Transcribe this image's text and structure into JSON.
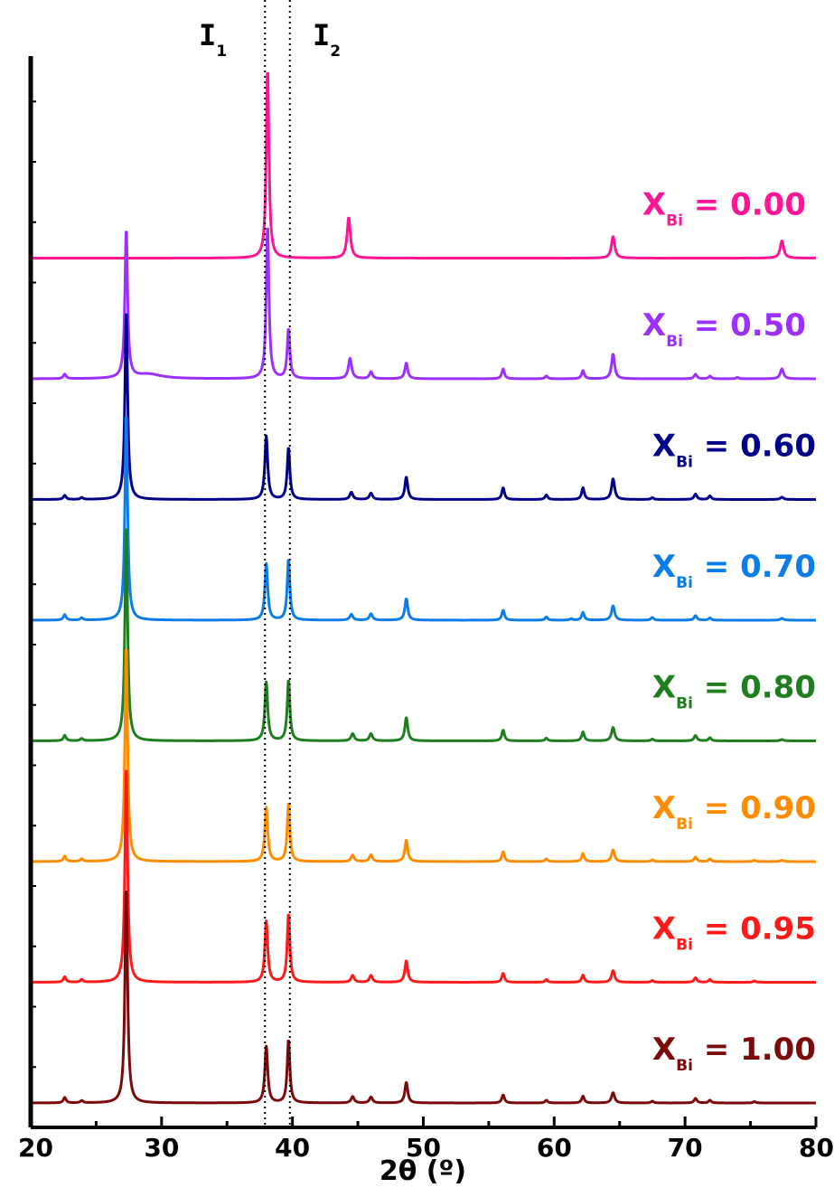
{
  "chart_data": {
    "type": "line",
    "xlabel": "2θ (º)",
    "ylabel": "",
    "xlim": [
      20,
      80
    ],
    "xticks": [
      20,
      30,
      40,
      50,
      60,
      70,
      80
    ],
    "yticks_labeled": false,
    "grid": false,
    "legend": "none",
    "markers": [
      {
        "main": "I",
        "sub": "1",
        "x": 37.9
      },
      {
        "main": "I",
        "sub": "2",
        "x": 39.8
      }
    ],
    "series": [
      {
        "name": "X_Bi = 0.00",
        "label_main": "X",
        "label_sub": "Bi",
        "label_value": " = 0.00",
        "color": "#ff1493",
        "offset": 7.0,
        "peaks": [
          [
            38.1,
            4.2,
            0.12
          ],
          [
            44.3,
            0.9,
            0.15
          ],
          [
            64.5,
            0.48,
            0.15
          ],
          [
            77.4,
            0.38,
            0.16
          ]
        ]
      },
      {
        "name": "X_Bi = 0.50",
        "label_main": "X",
        "label_sub": "Bi",
        "label_value": " = 0.50",
        "color": "#9b30ff",
        "offset": 6.0,
        "peaks": [
          [
            22.6,
            0.1,
            0.12
          ],
          [
            27.3,
            3.3,
            0.12
          ],
          [
            29.0,
            0.1,
            1.2
          ],
          [
            38.1,
            3.4,
            0.12
          ],
          [
            39.7,
            1.1,
            0.12
          ],
          [
            44.4,
            0.45,
            0.15
          ],
          [
            46.0,
            0.15,
            0.14
          ],
          [
            48.7,
            0.35,
            0.13
          ],
          [
            56.1,
            0.22,
            0.12
          ],
          [
            59.4,
            0.06,
            0.12
          ],
          [
            62.2,
            0.18,
            0.12
          ],
          [
            64.5,
            0.55,
            0.14
          ],
          [
            70.8,
            0.1,
            0.13
          ],
          [
            71.9,
            0.06,
            0.12
          ],
          [
            74.0,
            0.03,
            0.12
          ],
          [
            77.4,
            0.22,
            0.15
          ]
        ]
      },
      {
        "name": "X_Bi = 0.60",
        "label_main": "X",
        "label_sub": "Bi",
        "label_value": " = 0.60",
        "color": "#00008b",
        "offset": 5.0,
        "peaks": [
          [
            22.6,
            0.09,
            0.12
          ],
          [
            23.9,
            0.04,
            0.12
          ],
          [
            27.3,
            4.2,
            0.12
          ],
          [
            38.0,
            1.4,
            0.13
          ],
          [
            39.7,
            1.15,
            0.12
          ],
          [
            44.5,
            0.16,
            0.14
          ],
          [
            46.0,
            0.14,
            0.14
          ],
          [
            48.7,
            0.5,
            0.13
          ],
          [
            56.1,
            0.26,
            0.12
          ],
          [
            59.4,
            0.1,
            0.12
          ],
          [
            62.2,
            0.26,
            0.12
          ],
          [
            64.5,
            0.46,
            0.14
          ],
          [
            67.5,
            0.04,
            0.12
          ],
          [
            70.8,
            0.12,
            0.13
          ],
          [
            71.9,
            0.08,
            0.12
          ],
          [
            77.4,
            0.05,
            0.15
          ]
        ]
      },
      {
        "name": "X_Bi = 0.70",
        "label_main": "X",
        "label_sub": "Bi",
        "label_value": " = 0.70",
        "color": "#0a7de8",
        "offset": 4.0,
        "peaks": [
          [
            22.6,
            0.12,
            0.12
          ],
          [
            23.9,
            0.05,
            0.12
          ],
          [
            27.3,
            4.6,
            0.12
          ],
          [
            38.0,
            1.25,
            0.13
          ],
          [
            39.7,
            1.35,
            0.12
          ],
          [
            44.5,
            0.13,
            0.14
          ],
          [
            46.0,
            0.14,
            0.14
          ],
          [
            48.7,
            0.48,
            0.13
          ],
          [
            56.1,
            0.22,
            0.12
          ],
          [
            59.4,
            0.07,
            0.12
          ],
          [
            61.3,
            0.03,
            0.12
          ],
          [
            62.2,
            0.17,
            0.12
          ],
          [
            64.5,
            0.32,
            0.14
          ],
          [
            67.5,
            0.06,
            0.12
          ],
          [
            70.8,
            0.1,
            0.13
          ],
          [
            71.9,
            0.05,
            0.12
          ],
          [
            77.4,
            0.04,
            0.15
          ]
        ]
      },
      {
        "name": "X_Bi = 0.80",
        "label_main": "X",
        "label_sub": "Bi",
        "label_value": " = 0.80",
        "color": "#1f7f1f",
        "offset": 3.0,
        "peaks": [
          [
            22.6,
            0.12,
            0.12
          ],
          [
            23.9,
            0.05,
            0.12
          ],
          [
            27.3,
            4.8,
            0.12
          ],
          [
            38.0,
            1.3,
            0.13
          ],
          [
            39.7,
            1.35,
            0.12
          ],
          [
            44.6,
            0.16,
            0.14
          ],
          [
            46.0,
            0.16,
            0.14
          ],
          [
            48.7,
            0.52,
            0.13
          ],
          [
            56.1,
            0.24,
            0.12
          ],
          [
            59.4,
            0.06,
            0.12
          ],
          [
            62.2,
            0.2,
            0.12
          ],
          [
            64.5,
            0.3,
            0.14
          ],
          [
            67.5,
            0.04,
            0.12
          ],
          [
            70.8,
            0.12,
            0.13
          ],
          [
            71.9,
            0.07,
            0.12
          ],
          [
            77.4,
            0.03,
            0.15
          ]
        ]
      },
      {
        "name": "X_Bi = 0.90",
        "label_main": "X",
        "label_sub": "Bi",
        "label_value": " = 0.90",
        "color": "#ff8c00",
        "offset": 2.0,
        "peaks": [
          [
            22.6,
            0.12,
            0.12
          ],
          [
            23.9,
            0.06,
            0.12
          ],
          [
            27.3,
            4.8,
            0.12
          ],
          [
            38.0,
            1.2,
            0.13
          ],
          [
            39.7,
            1.3,
            0.12
          ],
          [
            44.6,
            0.14,
            0.14
          ],
          [
            46.0,
            0.15,
            0.14
          ],
          [
            48.7,
            0.48,
            0.13
          ],
          [
            56.1,
            0.22,
            0.12
          ],
          [
            59.4,
            0.06,
            0.12
          ],
          [
            62.2,
            0.18,
            0.12
          ],
          [
            64.5,
            0.26,
            0.14
          ],
          [
            67.5,
            0.04,
            0.12
          ],
          [
            70.8,
            0.1,
            0.13
          ],
          [
            71.9,
            0.06,
            0.12
          ],
          [
            75.3,
            0.03,
            0.12
          ],
          [
            77.4,
            0.03,
            0.15
          ]
        ]
      },
      {
        "name": "X_Bi = 0.95",
        "label_main": "X",
        "label_sub": "Bi",
        "label_value": " = 0.95",
        "color": "#ff1a1a",
        "offset": 1.0,
        "peaks": [
          [
            22.6,
            0.12,
            0.12
          ],
          [
            23.9,
            0.06,
            0.12
          ],
          [
            27.3,
            4.8,
            0.12
          ],
          [
            38.0,
            1.35,
            0.13
          ],
          [
            39.7,
            1.52,
            0.12
          ],
          [
            44.6,
            0.15,
            0.14
          ],
          [
            46.0,
            0.15,
            0.14
          ],
          [
            48.7,
            0.48,
            0.13
          ],
          [
            56.1,
            0.2,
            0.12
          ],
          [
            59.4,
            0.06,
            0.12
          ],
          [
            62.2,
            0.16,
            0.12
          ],
          [
            64.5,
            0.26,
            0.14
          ],
          [
            67.5,
            0.04,
            0.12
          ],
          [
            70.8,
            0.1,
            0.13
          ],
          [
            71.9,
            0.06,
            0.12
          ],
          [
            75.3,
            0.03,
            0.12
          ]
        ]
      },
      {
        "name": "X_Bi = 1.00",
        "label_main": "X",
        "label_sub": "Bi",
        "label_value": " = 1.00",
        "color": "#7b0a0a",
        "offset": 0.0,
        "peaks": [
          [
            22.6,
            0.12,
            0.12
          ],
          [
            23.9,
            0.05,
            0.12
          ],
          [
            27.3,
            4.8,
            0.12
          ],
          [
            38.0,
            1.25,
            0.13
          ],
          [
            39.7,
            1.4,
            0.12
          ],
          [
            44.6,
            0.14,
            0.14
          ],
          [
            46.0,
            0.13,
            0.14
          ],
          [
            48.7,
            0.46,
            0.13
          ],
          [
            56.1,
            0.18,
            0.12
          ],
          [
            59.4,
            0.06,
            0.12
          ],
          [
            62.2,
            0.15,
            0.12
          ],
          [
            64.5,
            0.23,
            0.14
          ],
          [
            67.5,
            0.04,
            0.12
          ],
          [
            70.8,
            0.1,
            0.13
          ],
          [
            71.9,
            0.06,
            0.12
          ],
          [
            75.3,
            0.03,
            0.12
          ]
        ]
      }
    ]
  }
}
